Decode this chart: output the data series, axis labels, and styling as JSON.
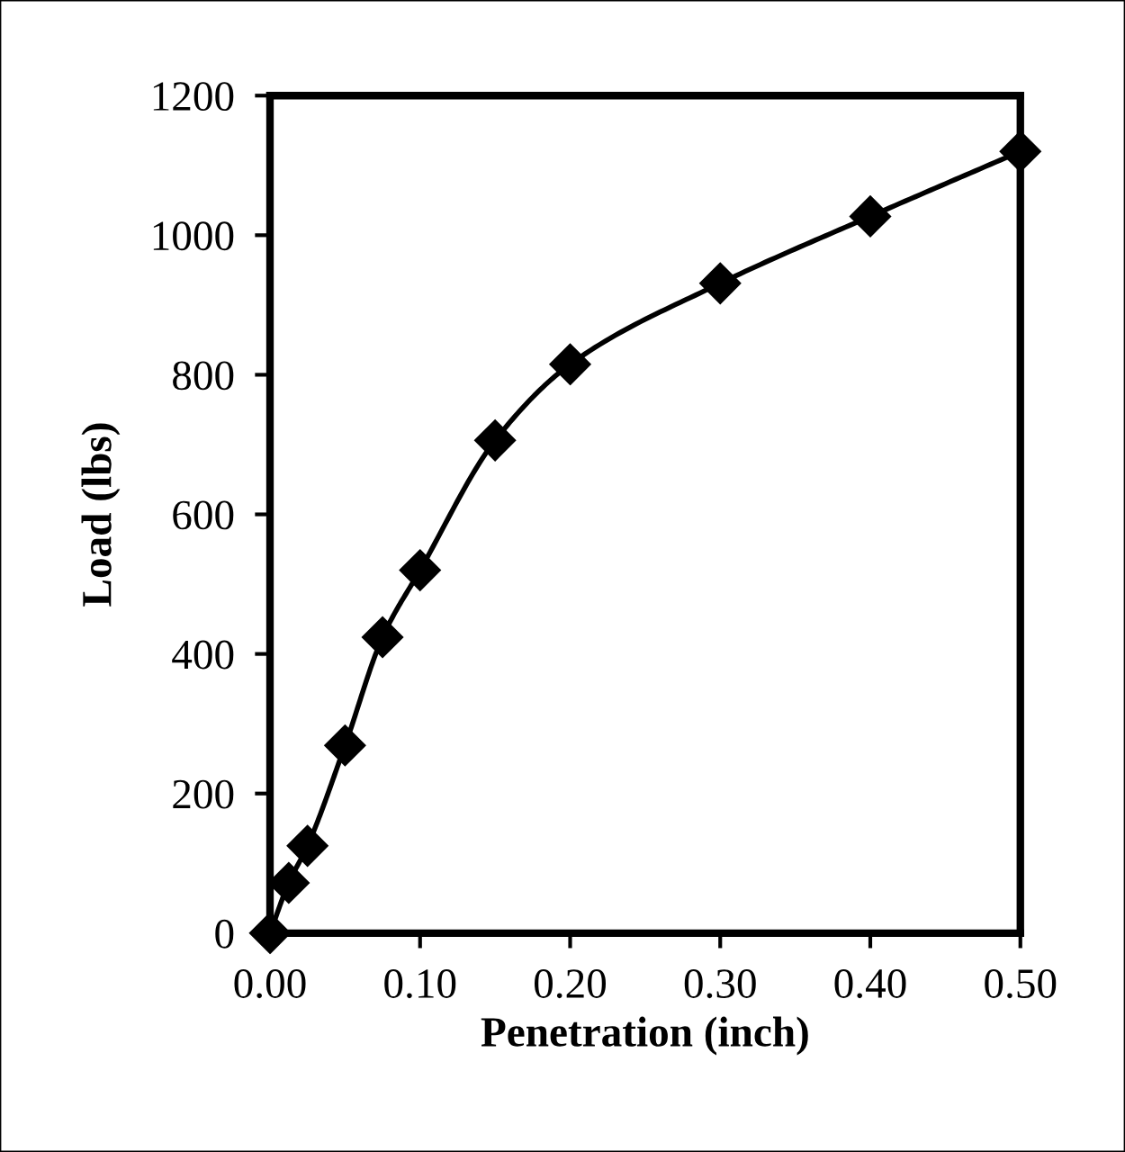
{
  "chart_data": {
    "type": "line",
    "xlabel": "Penetration (inch)",
    "ylabel": "Load (lbs)",
    "x": [
      0,
      0.0125,
      0.025,
      0.05,
      0.075,
      0.1,
      0.15,
      0.2,
      0.3,
      0.4,
      0.5
    ],
    "series": [
      {
        "color": "#000000",
        "values": [
          0,
          72,
          125,
          269,
          424,
          520,
          706,
          815,
          931,
          1027,
          1120
        ]
      }
    ],
    "xlim": [
      0,
      0.5
    ],
    "ylim": [
      0,
      1200
    ],
    "xticks": [
      {
        "value": 0,
        "label": "0.00"
      },
      {
        "value": 0.1,
        "label": "0.10"
      },
      {
        "value": 0.2,
        "label": "0.20"
      },
      {
        "value": 0.3,
        "label": "0.30"
      },
      {
        "value": 0.4,
        "label": "0.40"
      },
      {
        "value": 0.5,
        "label": "0.50"
      }
    ],
    "yticks": [
      0,
      200,
      400,
      600,
      800,
      1000,
      1200
    ],
    "marker": "diamond",
    "line_style": "solid",
    "grid": false,
    "legend": false
  }
}
